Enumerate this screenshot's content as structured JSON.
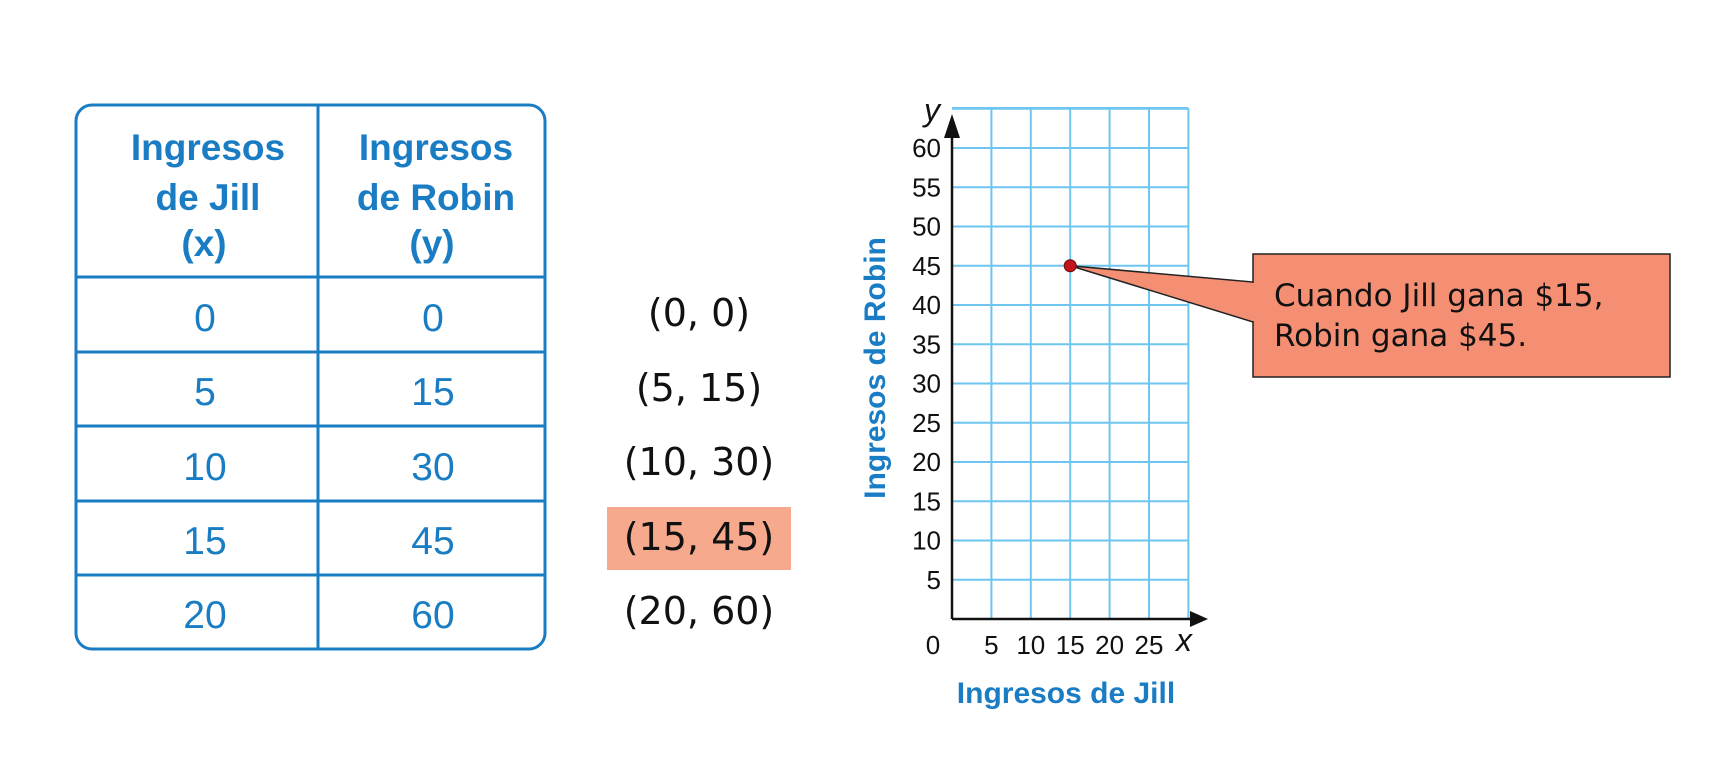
{
  "table": {
    "col1_header": [
      "Ingresos",
      "de Jill",
      "(x)"
    ],
    "col2_header": [
      "Ingresos",
      "de Robin",
      "(y)"
    ],
    "rows": [
      {
        "x": "0",
        "y": "0"
      },
      {
        "x": "5",
        "y": "15"
      },
      {
        "x": "10",
        "y": "30"
      },
      {
        "x": "15",
        "y": "45"
      },
      {
        "x": "20",
        "y": "60"
      }
    ]
  },
  "pairs": [
    "(0, 0)",
    "(5, 15)",
    "(10, 30)",
    "(15, 45)",
    "(20, 60)"
  ],
  "highlight_index": 3,
  "chart_data": {
    "type": "scatter",
    "xlabel": "Ingresos de Jill",
    "ylabel": "Ingresos de Robin",
    "x_axis_var": "x",
    "y_axis_var": "y",
    "xlim": [
      0,
      30
    ],
    "ylim": [
      0,
      65
    ],
    "x_ticks": [
      "0",
      "5",
      "10",
      "15",
      "20",
      "25"
    ],
    "y_ticks": [
      "5",
      "10",
      "15",
      "20",
      "25",
      "30",
      "35",
      "40",
      "45",
      "50",
      "55",
      "60"
    ],
    "grid": true,
    "points": [
      {
        "x": 15,
        "y": 45
      }
    ],
    "annotation": [
      "Cuando Jill gana $15,",
      "Robin gana $45."
    ]
  },
  "colors": {
    "blue": "#1a7dc4",
    "grid": "#6ec6f0",
    "highlight": "#f7a98d",
    "callout": "#f48f74",
    "point": "#c0151a"
  }
}
